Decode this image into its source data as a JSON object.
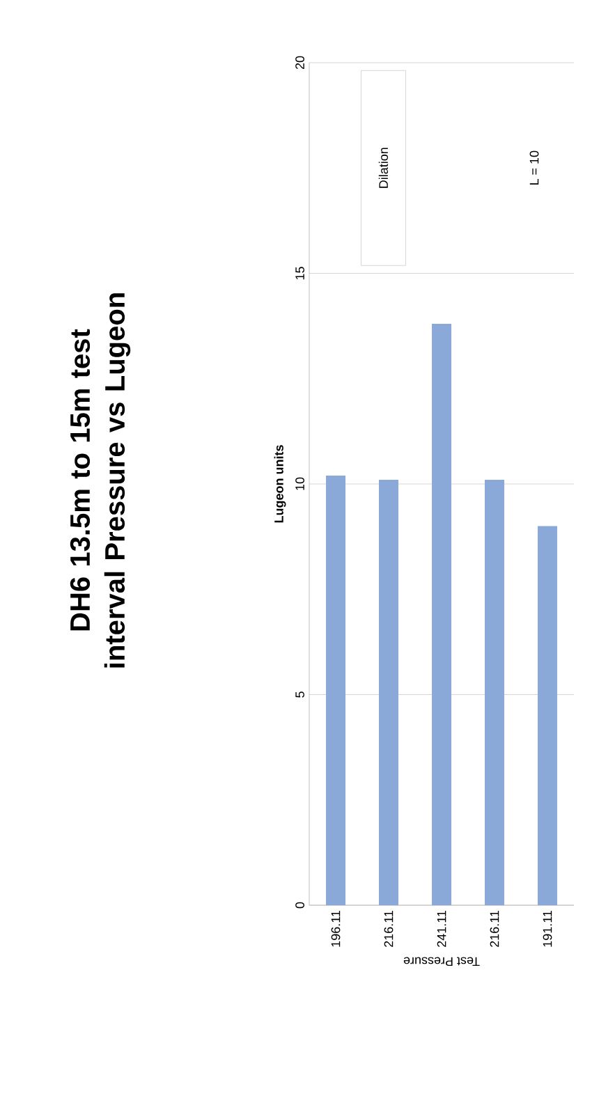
{
  "chart_data": {
    "type": "bar",
    "title": "DH6 13.5m to 15m test interval Pressure vs Lugeon",
    "xlabel": "Test Pressure",
    "ylabel": "Lugeon units",
    "categories": [
      "196.11",
      "216.11",
      "241.11",
      "216.11",
      "191.11"
    ],
    "values": [
      10.2,
      10.1,
      13.8,
      10.1,
      9.0
    ],
    "color": "#8aa8d8",
    "ylim": [
      0,
      20
    ],
    "yticks": [
      0,
      5,
      10,
      15,
      20
    ],
    "grid": "y",
    "annotations": [
      "Dilation",
      "L = 10"
    ]
  }
}
